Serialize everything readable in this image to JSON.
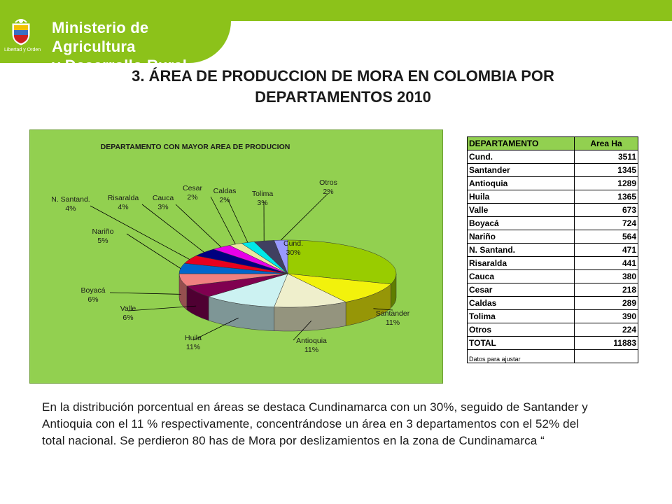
{
  "header": {
    "ministry_line1": "Ministerio de Agricultura",
    "ministry_line2": "y Desarrollo Rural",
    "seal_text": "Libertad y Orden",
    "band_color": "#8cc21a"
  },
  "title_line1": "3. ÁREA DE PRODUCCION DE MORA EN COLOMBIA POR",
  "title_line2": "DEPARTAMENTOS  2010",
  "chart_data": {
    "type": "pie",
    "title": "DEPARTAMENTO  CON  MAYOR  AREA  DE  PRODUCION",
    "slices": [
      {
        "label": "Cund.",
        "pct_label": "30%",
        "value": 30,
        "color": "#99cc00"
      },
      {
        "label": "Santander",
        "pct_label": "11%",
        "value": 11,
        "color": "#f2f20c"
      },
      {
        "label": "Antioquia",
        "pct_label": "11%",
        "value": 11,
        "color": "#efefcc"
      },
      {
        "label": "Huila",
        "pct_label": "11%",
        "value": 11,
        "color": "#ccf2f2"
      },
      {
        "label": "Valle",
        "pct_label": "6%",
        "value": 6,
        "color": "#800050"
      },
      {
        "label": "Boyacá",
        "pct_label": "6%",
        "value": 6,
        "color": "#f08080"
      },
      {
        "label": "Nariño",
        "pct_label": "5%",
        "value": 5,
        "color": "#0066cc"
      },
      {
        "label": "N. Santand.",
        "pct_label": "4%",
        "value": 4,
        "color": "#e8001e"
      },
      {
        "label": "Risaralda",
        "pct_label": "4%",
        "value": 4,
        "color": "#000080"
      },
      {
        "label": "Cauca",
        "pct_label": "3%",
        "value": 3,
        "color": "#e800e8"
      },
      {
        "label": "Cesar",
        "pct_label": "2%",
        "value": 2,
        "color": "#e8e8a0"
      },
      {
        "label": "Caldas",
        "pct_label": "2%",
        "value": 2,
        "color": "#00e8e8"
      },
      {
        "label": "Tolima",
        "pct_label": "3%",
        "value": 3,
        "color": "#404060"
      },
      {
        "label": "Otros",
        "pct_label": "2%",
        "value": 2,
        "color": "#9999ff"
      }
    ],
    "background_color": "#92d050"
  },
  "table": {
    "headers": [
      "DEPARTAMENTO",
      "Area Ha"
    ],
    "rows": [
      [
        "Cund.",
        "3511"
      ],
      [
        "Santander",
        "1345"
      ],
      [
        "Antioquia",
        "1289"
      ],
      [
        "Huila",
        "1365"
      ],
      [
        "Valle",
        "673"
      ],
      [
        "Boyacá",
        "724"
      ],
      [
        "Nariño",
        "564"
      ],
      [
        "N. Santand.",
        "471"
      ],
      [
        "Risaralda",
        "441"
      ],
      [
        "Cauca",
        "380"
      ],
      [
        "Cesar",
        "218"
      ],
      [
        "Caldas",
        "289"
      ],
      [
        "Tolima",
        "390"
      ],
      [
        "Otros",
        "224"
      ],
      [
        "TOTAL",
        "11883"
      ]
    ],
    "note": "Datos para ajustar"
  },
  "summary": "En la distribución porcentual en áreas se destaca Cundinamarca con un 30%, seguido de Santander y Antioquia con el 11 % respectivamente, concentrándose un área en 3 departamentos con el 52% del total nacional. Se perdieron 80 has de Mora por deslizamientos en la zona de Cundinamarca  “"
}
